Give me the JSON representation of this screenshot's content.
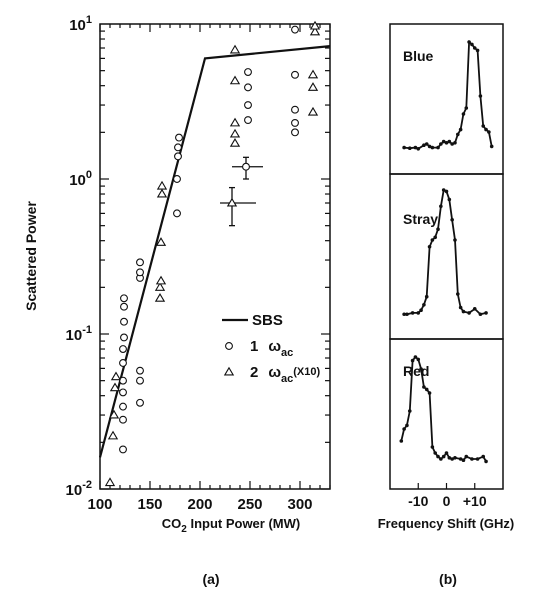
{
  "chart_data": [
    {
      "panel": "(a)",
      "type": "scatter",
      "xlabel": "CO2 Input Power (MW)",
      "ylabel": "Scattered Power",
      "xlim": [
        100,
        330
      ],
      "ylim": [
        0.01,
        10
      ],
      "yscale": "log",
      "x_ticks": [
        "100",
        "150",
        "200",
        "250",
        "300"
      ],
      "y_ticks": [
        {
          "base": "10",
          "exp": "1",
          "value": 10
        },
        {
          "base": "10",
          "exp": "0",
          "value": 1
        },
        {
          "base": "10",
          "exp": "-1",
          "value": 0.1
        },
        {
          "base": "10",
          "exp": "-2",
          "value": 0.01
        }
      ],
      "grid": false,
      "legend_position": "center-right",
      "legend": [
        {
          "symbol": "line",
          "label": "SBS"
        },
        {
          "symbol": "circle",
          "label": "1",
          "sub": "ac",
          "greek": "ω"
        },
        {
          "symbol": "triangle",
          "label": "2",
          "sub": "ac",
          "greek": "ω",
          "suffix": "(X10)"
        }
      ],
      "series": [
        {
          "name": "SBS",
          "mark": "line",
          "points": [
            [
              100,
              0.016
            ],
            [
              205,
              6.0
            ],
            [
              330,
              7.2
            ]
          ]
        },
        {
          "name": "1 ωac",
          "mark": "circle",
          "points": [
            [
              123,
              0.018
            ],
            [
              123,
              0.028
            ],
            [
              123,
              0.034
            ],
            [
              123,
              0.042
            ],
            [
              123,
              0.05
            ],
            [
              123,
              0.065
            ],
            [
              123,
              0.08
            ],
            [
              124,
              0.095
            ],
            [
              124,
              0.12
            ],
            [
              124,
              0.15
            ],
            [
              124,
              0.17
            ],
            [
              140,
              0.036
            ],
            [
              140,
              0.05
            ],
            [
              140,
              0.058
            ],
            [
              140,
              0.23
            ],
            [
              140,
              0.25
            ],
            [
              140,
              0.29
            ],
            [
              177,
              0.6
            ],
            [
              177,
              1.0
            ],
            [
              178,
              1.4
            ],
            [
              178,
              1.6
            ],
            [
              179,
              1.85
            ],
            [
              248,
              2.4
            ],
            [
              248,
              3.0
            ],
            [
              248,
              3.9
            ],
            [
              248,
              4.9
            ],
            [
              295,
              2.0
            ],
            [
              295,
              2.3
            ],
            [
              295,
              2.8
            ],
            [
              295,
              4.7
            ],
            [
              295,
              9.2
            ]
          ]
        },
        {
          "name": "2 ωac (X10)",
          "mark": "triangle",
          "points": [
            [
              110,
              0.011
            ],
            [
              113,
              0.022
            ],
            [
              114,
              0.03
            ],
            [
              115,
              0.045
            ],
            [
              116,
              0.053
            ],
            [
              160,
              0.17
            ],
            [
              160,
              0.2
            ],
            [
              161,
              0.22
            ],
            [
              161,
              0.39
            ],
            [
              162,
              0.8
            ],
            [
              162,
              0.9
            ],
            [
              235,
              1.7
            ],
            [
              235,
              1.95
            ],
            [
              235,
              2.3
            ],
            [
              235,
              4.3
            ],
            [
              235,
              6.8
            ],
            [
              313,
              2.7
            ],
            [
              313,
              3.9
            ],
            [
              313,
              4.7
            ],
            [
              315,
              8.9
            ],
            [
              315,
              9.7
            ]
          ]
        }
      ],
      "error_points": [
        {
          "mark": "circle",
          "x": 246,
          "y": 1.2,
          "x_err": [
            232,
            263
          ],
          "y_err": [
            1.0,
            1.38
          ]
        },
        {
          "mark": "triangle",
          "x": 232,
          "y": 0.7,
          "x_err": [
            220,
            256
          ],
          "y_err": [
            0.5,
            0.88
          ]
        }
      ]
    },
    {
      "panel": "(b)",
      "type": "line",
      "xlabel": "Frequency Shift (GHz)",
      "x_ticks": [
        "-10",
        "0",
        "+10"
      ],
      "xlim": [
        -20,
        20
      ],
      "ylim": [
        0,
        1
      ],
      "subpanels": [
        {
          "name": "Blue",
          "points": [
            [
              -15,
              0.07
            ],
            [
              -13,
              0.065
            ],
            [
              -11,
              0.07
            ],
            [
              -10,
              0.06
            ],
            [
              -8,
              0.09
            ],
            [
              -7,
              0.1
            ],
            [
              -6,
              0.08
            ],
            [
              -5,
              0.07
            ],
            [
              -3,
              0.07
            ],
            [
              -2,
              0.1
            ],
            [
              -1,
              0.12
            ],
            [
              0,
              0.11
            ],
            [
              1,
              0.12
            ],
            [
              2,
              0.1
            ],
            [
              3,
              0.11
            ],
            [
              4,
              0.18
            ],
            [
              5,
              0.22
            ],
            [
              6,
              0.35
            ],
            [
              7,
              0.4
            ],
            [
              8,
              0.95
            ],
            [
              9,
              0.93
            ],
            [
              10,
              0.9
            ],
            [
              11,
              0.88
            ],
            [
              12,
              0.5
            ],
            [
              13,
              0.25
            ],
            [
              14,
              0.22
            ],
            [
              15,
              0.2
            ],
            [
              16,
              0.08
            ]
          ]
        },
        {
          "name": "Stray",
          "points": [
            [
              -15,
              0.05
            ],
            [
              -14,
              0.05
            ],
            [
              -12,
              0.06
            ],
            [
              -10,
              0.06
            ],
            [
              -9,
              0.08
            ],
            [
              -8,
              0.12
            ],
            [
              -7,
              0.18
            ],
            [
              -6,
              0.55
            ],
            [
              -5,
              0.6
            ],
            [
              -4,
              0.62
            ],
            [
              -3,
              0.68
            ],
            [
              -2,
              0.85
            ],
            [
              -1,
              0.97
            ],
            [
              0,
              0.96
            ],
            [
              1,
              0.9
            ],
            [
              2,
              0.75
            ],
            [
              3,
              0.6
            ],
            [
              4,
              0.2
            ],
            [
              5,
              0.1
            ],
            [
              6,
              0.07
            ],
            [
              8,
              0.06
            ],
            [
              10,
              0.09
            ],
            [
              12,
              0.05
            ],
            [
              14,
              0.06
            ]
          ]
        },
        {
          "name": "Red",
          "points": [
            [
              -16,
              0.25
            ],
            [
              -15,
              0.35
            ],
            [
              -14,
              0.38
            ],
            [
              -13,
              0.5
            ],
            [
              -12,
              0.92
            ],
            [
              -11,
              0.95
            ],
            [
              -10,
              0.93
            ],
            [
              -9,
              0.85
            ],
            [
              -8,
              0.7
            ],
            [
              -7,
              0.68
            ],
            [
              -6,
              0.65
            ],
            [
              -5,
              0.2
            ],
            [
              -4,
              0.15
            ],
            [
              -3,
              0.12
            ],
            [
              -2,
              0.1
            ],
            [
              -1,
              0.12
            ],
            [
              0,
              0.15
            ],
            [
              1,
              0.11
            ],
            [
              2,
              0.1
            ],
            [
              3,
              0.11
            ],
            [
              5,
              0.1
            ],
            [
              6,
              0.09
            ],
            [
              7,
              0.12
            ],
            [
              9,
              0.1
            ],
            [
              11,
              0.1
            ],
            [
              13,
              0.12
            ],
            [
              14,
              0.08
            ]
          ]
        }
      ]
    }
  ]
}
